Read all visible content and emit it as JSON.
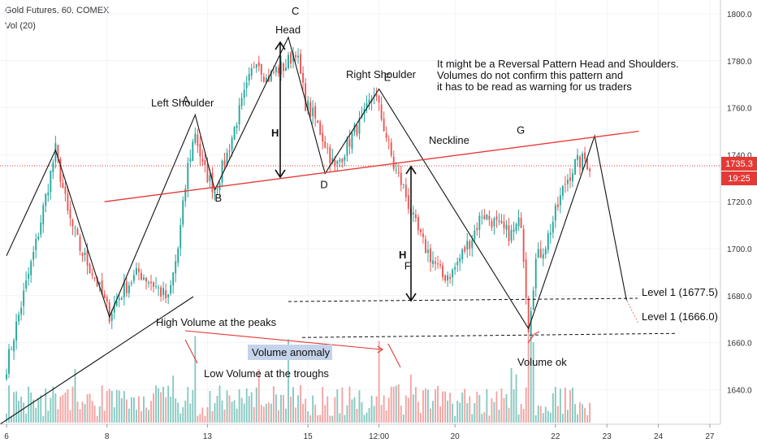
{
  "header": {
    "symbol_line": "Gold Futures, 60, COMEX",
    "volume_line": "Vol (20)"
  },
  "price_badge": {
    "value": "1735.3",
    "countdown": "19:25",
    "color": "#e53935"
  },
  "colors": {
    "up": "#26a69a",
    "down": "#ef5350",
    "up_vol": "#86c9c1",
    "down_vol": "#f3a3a2",
    "accent_red": "#e53935"
  },
  "chart_data": {
    "type": "candlestick",
    "title": "",
    "y_ticks": [
      1640,
      1660,
      1680,
      1700,
      1720,
      1740,
      1760,
      1780,
      1800
    ],
    "y_tick_labels": [
      "1640.0",
      "1660.0",
      "1680.0",
      "1700.0",
      "1720.0",
      "1740.0",
      "1760.0",
      "1780.0",
      "1800.0"
    ],
    "ylim": [
      1620,
      1805
    ],
    "x_ticks": [
      {
        "label": "6",
        "index": 0
      },
      {
        "label": "8",
        "index": 41
      },
      {
        "label": "13",
        "index": 82
      },
      {
        "label": "15",
        "index": 123
      },
      {
        "label": "12:00",
        "index": 152
      },
      {
        "label": "20",
        "index": 183
      },
      {
        "label": "22",
        "index": 224
      },
      {
        "label": "23",
        "index": 245
      },
      {
        "label": "24",
        "index": 266
      },
      {
        "label": "27",
        "index": 287
      }
    ],
    "x_span": 290,
    "current_price": 1735.3,
    "price_path": [
      [
        0,
        1650
      ],
      [
        12,
        1702
      ],
      [
        20,
        1742
      ],
      [
        25,
        1715
      ],
      [
        30,
        1700
      ],
      [
        36,
        1688
      ],
      [
        42,
        1672
      ],
      [
        48,
        1683
      ],
      [
        54,
        1690
      ],
      [
        60,
        1685
      ],
      [
        66,
        1678
      ],
      [
        70,
        1700
      ],
      [
        74,
        1735
      ],
      [
        77,
        1750
      ],
      [
        80,
        1735
      ],
      [
        85,
        1725
      ],
      [
        90,
        1740
      ],
      [
        94,
        1755
      ],
      [
        98,
        1768
      ],
      [
        102,
        1782
      ],
      [
        106,
        1772
      ],
      [
        110,
        1776
      ],
      [
        114,
        1778
      ],
      [
        118,
        1785
      ],
      [
        122,
        1762
      ],
      [
        126,
        1755
      ],
      [
        130,
        1745
      ],
      [
        134,
        1734
      ],
      [
        138,
        1742
      ],
      [
        142,
        1750
      ],
      [
        146,
        1756
      ],
      [
        150,
        1767
      ],
      [
        154,
        1752
      ],
      [
        158,
        1735
      ],
      [
        162,
        1726
      ],
      [
        166,
        1712
      ],
      [
        170,
        1702
      ],
      [
        174,
        1695
      ],
      [
        178,
        1688
      ],
      [
        182,
        1690
      ],
      [
        186,
        1698
      ],
      [
        190,
        1705
      ],
      [
        194,
        1715
      ],
      [
        198,
        1712
      ],
      [
        202,
        1708
      ],
      [
        206,
        1706
      ],
      [
        210,
        1712
      ],
      [
        213,
        1667
      ],
      [
        216,
        1695
      ],
      [
        220,
        1702
      ],
      [
        224,
        1715
      ],
      [
        228,
        1728
      ],
      [
        232,
        1736
      ],
      [
        236,
        1738
      ],
      [
        238,
        1735
      ]
    ],
    "annotations": {
      "pattern_points": [
        {
          "label": "A",
          "x": 77,
          "y": 1757
        },
        {
          "label": "B",
          "x": 85,
          "y": 1725
        },
        {
          "label": "C",
          "x": 115,
          "y": 1790
        },
        {
          "label": "D",
          "x": 130,
          "y": 1732
        },
        {
          "label": "E",
          "x": 152,
          "y": 1768
        },
        {
          "label": "F",
          "x": 163,
          "y": 1697
        },
        {
          "label": "G",
          "x": 240,
          "y": 1748
        }
      ],
      "text_labels": [
        {
          "key": "left_shoulder",
          "text": "Left Shoulder"
        },
        {
          "key": "head",
          "text": "Head"
        },
        {
          "key": "right_shoulder",
          "text": "Right Shoulder"
        },
        {
          "key": "neckline",
          "text": "Neckline"
        },
        {
          "key": "h1",
          "text": "H"
        },
        {
          "key": "h2",
          "text": "H"
        },
        {
          "key": "high_volume",
          "text": "High Volume at the peaks"
        },
        {
          "key": "low_volume",
          "text": "Low Volume at the troughs"
        },
        {
          "key": "volume_anomaly",
          "text": "Volume anomaly"
        },
        {
          "key": "volume_ok",
          "text": "Volume ok"
        },
        {
          "key": "level1",
          "text": "Level 1 (1677.5)"
        },
        {
          "key": "level2",
          "text": "Level 1 (1666.0)"
        }
      ],
      "note_lines": [
        "It might be a Reversal Pattern Head and Shoulders.",
        "Volumes do not confirm this pattern and",
        "it has to be read as warning for us traders"
      ],
      "levels": [
        1677.5,
        1666.0
      ],
      "neckline": [
        [
          40,
          1720
        ],
        [
          258,
          1750
        ]
      ],
      "zigzag": [
        [
          0,
          1697
        ],
        [
          20,
          1742
        ],
        [
          42,
          1671
        ],
        [
          77,
          1757
        ],
        [
          85,
          1725
        ],
        [
          115,
          1790
        ],
        [
          130,
          1732
        ],
        [
          152,
          1768
        ],
        [
          213,
          1666
        ],
        [
          240,
          1748
        ],
        [
          253,
          1678
        ]
      ]
    }
  }
}
